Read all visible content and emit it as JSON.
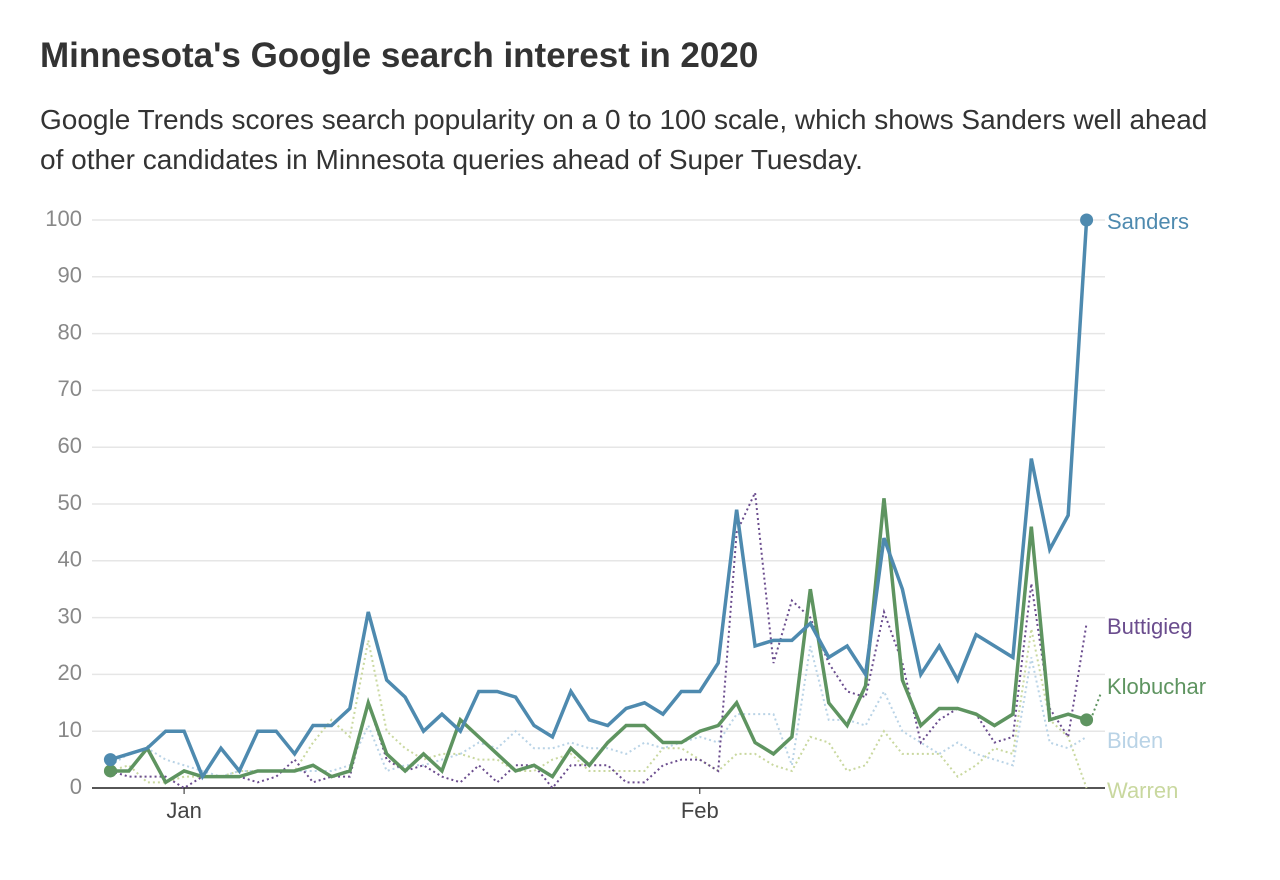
{
  "chart_data": {
    "type": "line",
    "title": "Minnesota's Google search interest in 2020",
    "subtitle": "Google Trends scores search popularity on a 0 to 100 scale, which shows Sanders well ahead of other candidates in Minnesota queries ahead of Super Tuesday.",
    "x": [
      0,
      1,
      2,
      3,
      4,
      5,
      6,
      7,
      8,
      9,
      10,
      11,
      12,
      13,
      14,
      15,
      16,
      17,
      18,
      19,
      20,
      21,
      22,
      23,
      24,
      25,
      26,
      27,
      28,
      29,
      30,
      31,
      32,
      33,
      34,
      35,
      36,
      37,
      38,
      39,
      40,
      41,
      42,
      43,
      44,
      45,
      46,
      47,
      48,
      49,
      50,
      51,
      52,
      53
    ],
    "xlim": [
      -1,
      54
    ],
    "xticks": [
      {
        "value": 4,
        "label": "Jan"
      },
      {
        "value": 32,
        "label": "Feb"
      }
    ],
    "ylim": [
      0,
      100
    ],
    "yticks": [
      0,
      10,
      20,
      30,
      40,
      50,
      60,
      70,
      80,
      90,
      100
    ],
    "grid": true,
    "series": [
      {
        "name": "Warren",
        "color": "#c9d89f",
        "style": "dotted",
        "values": [
          3,
          4,
          1,
          1,
          2,
          2,
          2,
          3,
          3,
          3,
          3,
          8,
          12,
          9,
          26,
          10,
          7,
          5,
          6,
          6,
          5,
          5,
          3,
          3,
          5,
          6,
          3,
          3,
          3,
          3,
          7,
          7,
          5,
          3,
          6,
          6,
          4,
          3,
          9,
          8,
          3,
          4,
          10,
          6,
          6,
          6,
          2,
          4,
          7,
          6,
          28,
          12,
          9,
          0
        ]
      },
      {
        "name": "Biden",
        "color": "#b9d3e6",
        "style": "dotted",
        "values": [
          4,
          6,
          7,
          5,
          4,
          3,
          2,
          3,
          3,
          3,
          3,
          3,
          3,
          4,
          11,
          3,
          4,
          4,
          5,
          6,
          8,
          7,
          10,
          7,
          7,
          8,
          7,
          7,
          6,
          8,
          7,
          8,
          9,
          8,
          13,
          13,
          13,
          4,
          25,
          12,
          12,
          11,
          17,
          10,
          8,
          6,
          8,
          6,
          5,
          4,
          23,
          8,
          7,
          9
        ]
      },
      {
        "name": "Buttigieg",
        "color": "#6b4d8e",
        "style": "dotted",
        "values": [
          3,
          2,
          2,
          2,
          0,
          2,
          2,
          2,
          1,
          2,
          5,
          1,
          2,
          2,
          15,
          5,
          3,
          4,
          2,
          1,
          4,
          1,
          4,
          4,
          0,
          4,
          4,
          4,
          1,
          1,
          4,
          5,
          5,
          3,
          45,
          52,
          22,
          33,
          30,
          22,
          17,
          16,
          31,
          22,
          8,
          12,
          14,
          13,
          8,
          9,
          36,
          14,
          9,
          29
        ]
      },
      {
        "name": "Klobuchar",
        "color": "#5e9460",
        "style": "solid",
        "values": [
          3,
          3,
          7,
          1,
          3,
          2,
          2,
          2,
          3,
          3,
          3,
          4,
          2,
          3,
          15,
          6,
          3,
          6,
          3,
          12,
          9,
          6,
          3,
          4,
          2,
          7,
          4,
          8,
          11,
          11,
          8,
          8,
          10,
          11,
          15,
          8,
          6,
          9,
          35,
          15,
          11,
          18,
          51,
          19,
          11,
          14,
          14,
          13,
          11,
          13,
          46,
          12,
          13,
          12
        ]
      },
      {
        "name": "Sanders",
        "color": "#4e8aaf",
        "style": "solid",
        "values": [
          5,
          6,
          7,
          10,
          10,
          2,
          7,
          3,
          10,
          10,
          6,
          11,
          11,
          14,
          31,
          19,
          16,
          10,
          13,
          10,
          17,
          17,
          16,
          11,
          9,
          17,
          12,
          11,
          14,
          15,
          13,
          17,
          17,
          22,
          49,
          25,
          26,
          26,
          29,
          23,
          25,
          20,
          44,
          35,
          20,
          25,
          19,
          27,
          25,
          23,
          58,
          42,
          48,
          100
        ]
      }
    ]
  }
}
